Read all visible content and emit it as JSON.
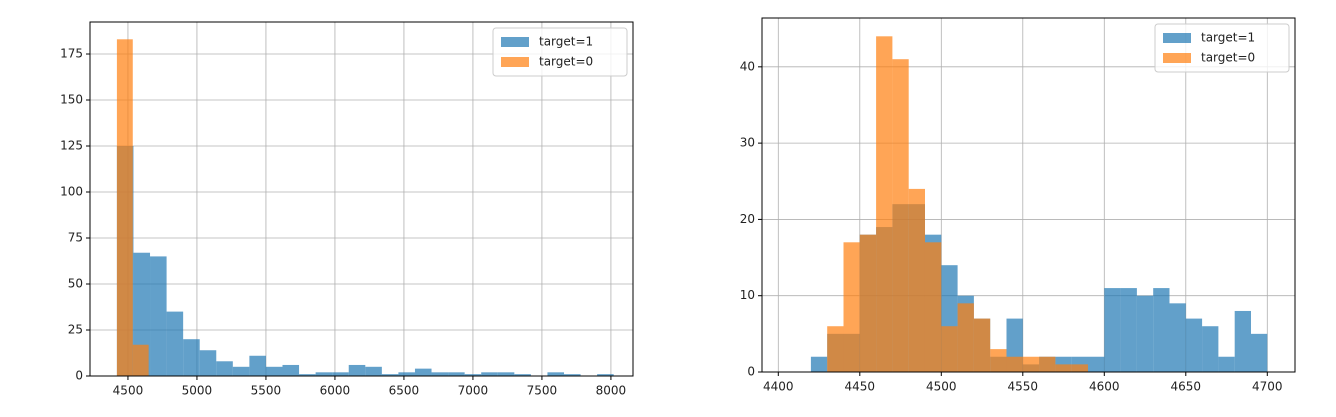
{
  "chart_data": [
    {
      "type": "histogram",
      "legend": "upper right",
      "grid": true,
      "alpha": 0.7,
      "xlim": [
        4225,
        8160
      ],
      "ylim": [
        0,
        192.4
      ],
      "xticks": [
        4500,
        5000,
        5500,
        6000,
        6500,
        7000,
        7500,
        8000
      ],
      "yticks": [
        0,
        25,
        50,
        75,
        100,
        125,
        150,
        175
      ],
      "series": [
        {
          "name": "target=1",
          "color": "#1f77b4",
          "bins": [
            4420,
            4540,
            4660,
            4780,
            4900,
            5020,
            5140,
            5260,
            5380,
            5500,
            5620,
            5740,
            5860,
            5980,
            6100,
            6220,
            6340,
            6460,
            6580,
            6700,
            6820,
            6940,
            7060,
            7180,
            7300,
            7420,
            7540,
            7660,
            7780,
            7900,
            8020
          ],
          "values": [
            125,
            67,
            65,
            35,
            20,
            14,
            8,
            5,
            11,
            5,
            6,
            1,
            2,
            2,
            6,
            5,
            1,
            2,
            4,
            2,
            2,
            1,
            2,
            2,
            1,
            0,
            2,
            1,
            0,
            1
          ]
        },
        {
          "name": "target=0",
          "color": "#ff7f0e",
          "bins": [
            4420,
            4535,
            4650
          ],
          "values": [
            183,
            17
          ]
        }
      ]
    },
    {
      "type": "histogram",
      "legend": "upper right",
      "grid": true,
      "alpha": 0.7,
      "xlim": [
        4390,
        4717
      ],
      "ylim": [
        0,
        46.4
      ],
      "xticks": [
        4400,
        4450,
        4500,
        4550,
        4600,
        4650,
        4700
      ],
      "yticks": [
        0,
        10,
        20,
        30,
        40
      ],
      "series": [
        {
          "name": "target=1",
          "color": "#1f77b4",
          "bins": [
            4420,
            4430,
            4440,
            4450,
            4460,
            4470,
            4480,
            4490,
            4500,
            4510,
            4520,
            4530,
            4540,
            4550,
            4560,
            4570,
            4580,
            4590,
            4600,
            4610,
            4620,
            4630,
            4640,
            4650,
            4660,
            4670,
            4680,
            4690,
            4700
          ],
          "values": [
            2,
            5,
            5,
            18,
            19,
            22,
            22,
            18,
            14,
            10,
            7,
            2,
            7,
            1,
            2,
            2,
            2,
            2,
            11,
            11,
            10,
            11,
            9,
            7,
            6,
            2,
            8,
            5
          ]
        },
        {
          "name": "target=0",
          "color": "#ff7f0e",
          "bins": [
            4430,
            4440,
            4450,
            4460,
            4470,
            4480,
            4490,
            4500,
            4510,
            4520,
            4530,
            4540,
            4550,
            4560,
            4570,
            4580,
            4590
          ],
          "values": [
            6,
            17,
            18,
            44,
            41,
            24,
            17,
            6,
            9,
            7,
            3,
            2,
            2,
            2,
            1,
            1
          ]
        }
      ]
    }
  ]
}
